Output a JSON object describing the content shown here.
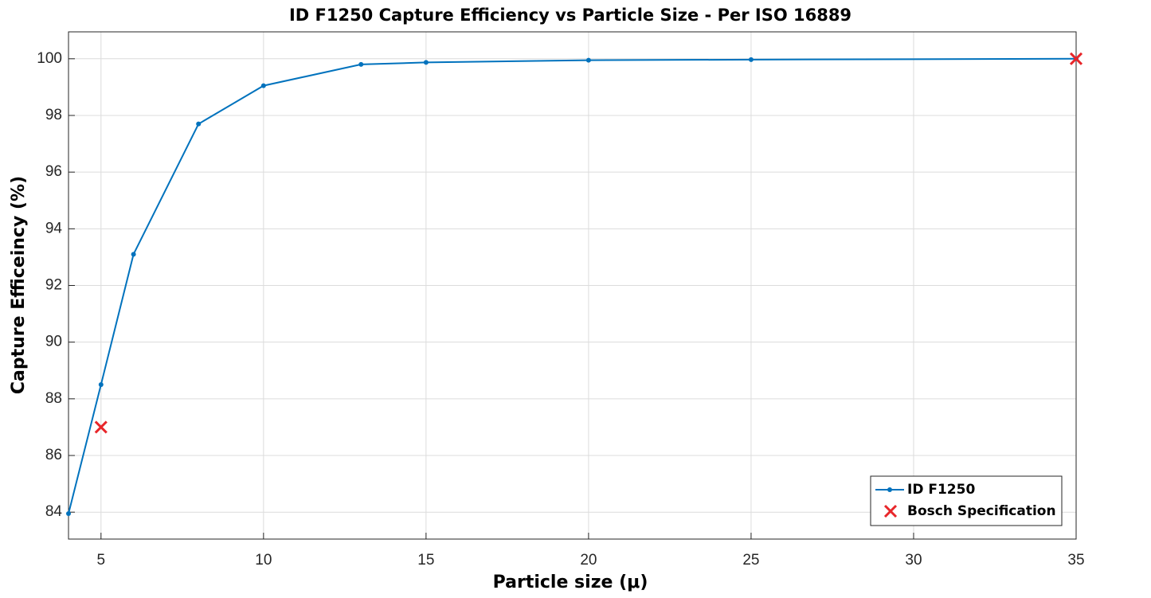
{
  "chart_data": {
    "type": "line",
    "title": "ID F1250 Capture Efficiency vs Particle Size - Per ISO 16889",
    "x_label": "Particle size (μ)",
    "y_label": "Capture Efficeincy (%)",
    "series": [
      {
        "name": "ID F1250",
        "color": "#0072bd",
        "marker": "dot",
        "x": [
          4,
          5,
          6,
          8,
          10,
          13,
          15,
          20,
          25,
          35
        ],
        "values": [
          83.95,
          88.5,
          93.1,
          97.7,
          99.05,
          99.8,
          99.87,
          99.95,
          99.97,
          100
        ]
      },
      {
        "name": "Bosch Specification",
        "color": "#e8262a",
        "marker": "x",
        "x": [
          5,
          35
        ],
        "values": [
          87,
          100
        ]
      }
    ],
    "xlim": [
      4,
      35
    ],
    "xticks": [
      5,
      10,
      15,
      20,
      25,
      30,
      35
    ],
    "ylim": [
      83.05,
      100.95
    ],
    "yticks": [
      84,
      86,
      88,
      90,
      92,
      94,
      96,
      98,
      100
    ],
    "grid": true,
    "legend": "southeast"
  }
}
